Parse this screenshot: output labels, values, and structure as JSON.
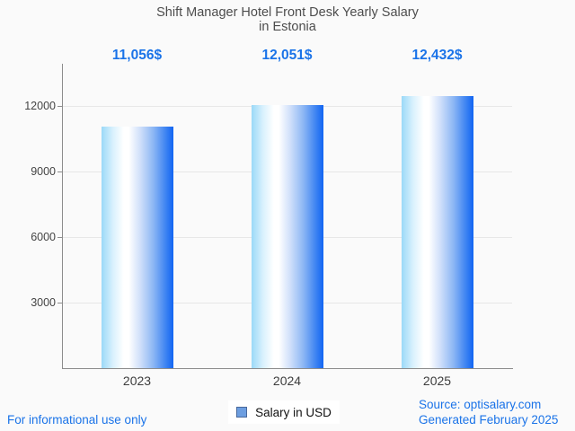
{
  "title": {
    "line1": "Shift Manager Hotel Front Desk Yearly Salary",
    "line2": "in Estonia"
  },
  "chart_data": {
    "type": "bar",
    "title": "Shift Manager Hotel Front Desk Yearly Salary in Estonia",
    "categories": [
      "2023",
      "2024",
      "2025"
    ],
    "values": [
      11056,
      12051,
      12432
    ],
    "value_labels": [
      "11,056$",
      "12,051$",
      "12,432$"
    ],
    "series": [
      {
        "name": "Salary in USD",
        "values": [
          11056,
          12051,
          12432
        ]
      }
    ],
    "xlabel": "",
    "ylabel": "",
    "yticks": [
      3000,
      6000,
      9000,
      12000
    ],
    "ylim": [
      0,
      14000
    ],
    "grid": true,
    "legend_position": "bottom",
    "bar_gradient_stops": [
      "#9bd9f8 0%",
      "#d9f1fd 16%",
      "#ffffff 31%",
      "#ffffff 38%",
      "#cfdffa 54%",
      "#8db7f4 72%",
      "#3b82f2 90%",
      "#1164f2 100%"
    ],
    "value_label_color": "#1a73e8",
    "axis_color": "#8c8c8c",
    "gridline_color": "#e7e7e7",
    "tick_label_color": "#444444",
    "title_color": "#4d4d4d"
  },
  "legend": {
    "label": "Salary in USD",
    "swatch_fill": "#6d9ee0",
    "swatch_border": "#49699c"
  },
  "footer": {
    "note": "For informational use only",
    "source_line1": "Source: optisalary.com",
    "source_line2": "Generated February 2025",
    "text_color": "#1a73e8"
  }
}
